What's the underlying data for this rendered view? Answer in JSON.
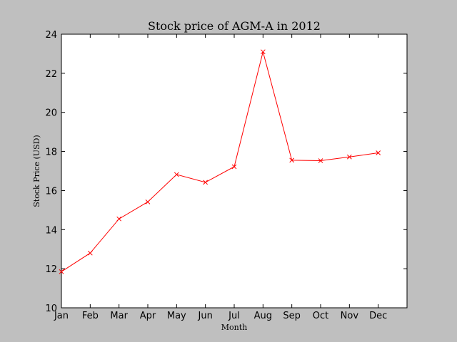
{
  "chart_data": {
    "type": "line",
    "title": "Stock price of AGM-A in 2012",
    "xlabel": "Month",
    "ylabel": "Stock Price (USD)",
    "categories": [
      "Jan",
      "Feb",
      "Mar",
      "Apr",
      "May",
      "Jun",
      "Jul",
      "Aug",
      "Sep",
      "Oct",
      "Nov",
      "Dec"
    ],
    "values": [
      11.85,
      12.8,
      14.55,
      15.42,
      16.82,
      16.42,
      17.22,
      23.1,
      17.55,
      17.53,
      17.72,
      17.93
    ],
    "yticks": [
      10,
      12,
      14,
      16,
      18,
      20,
      22,
      24
    ],
    "ylim": [
      10,
      24
    ],
    "xlim": [
      0,
      12
    ],
    "grid": false,
    "marker": "x",
    "line_color": "#ff0000",
    "background_color": "#bfbfbf",
    "plot_color": "#ffffff"
  }
}
